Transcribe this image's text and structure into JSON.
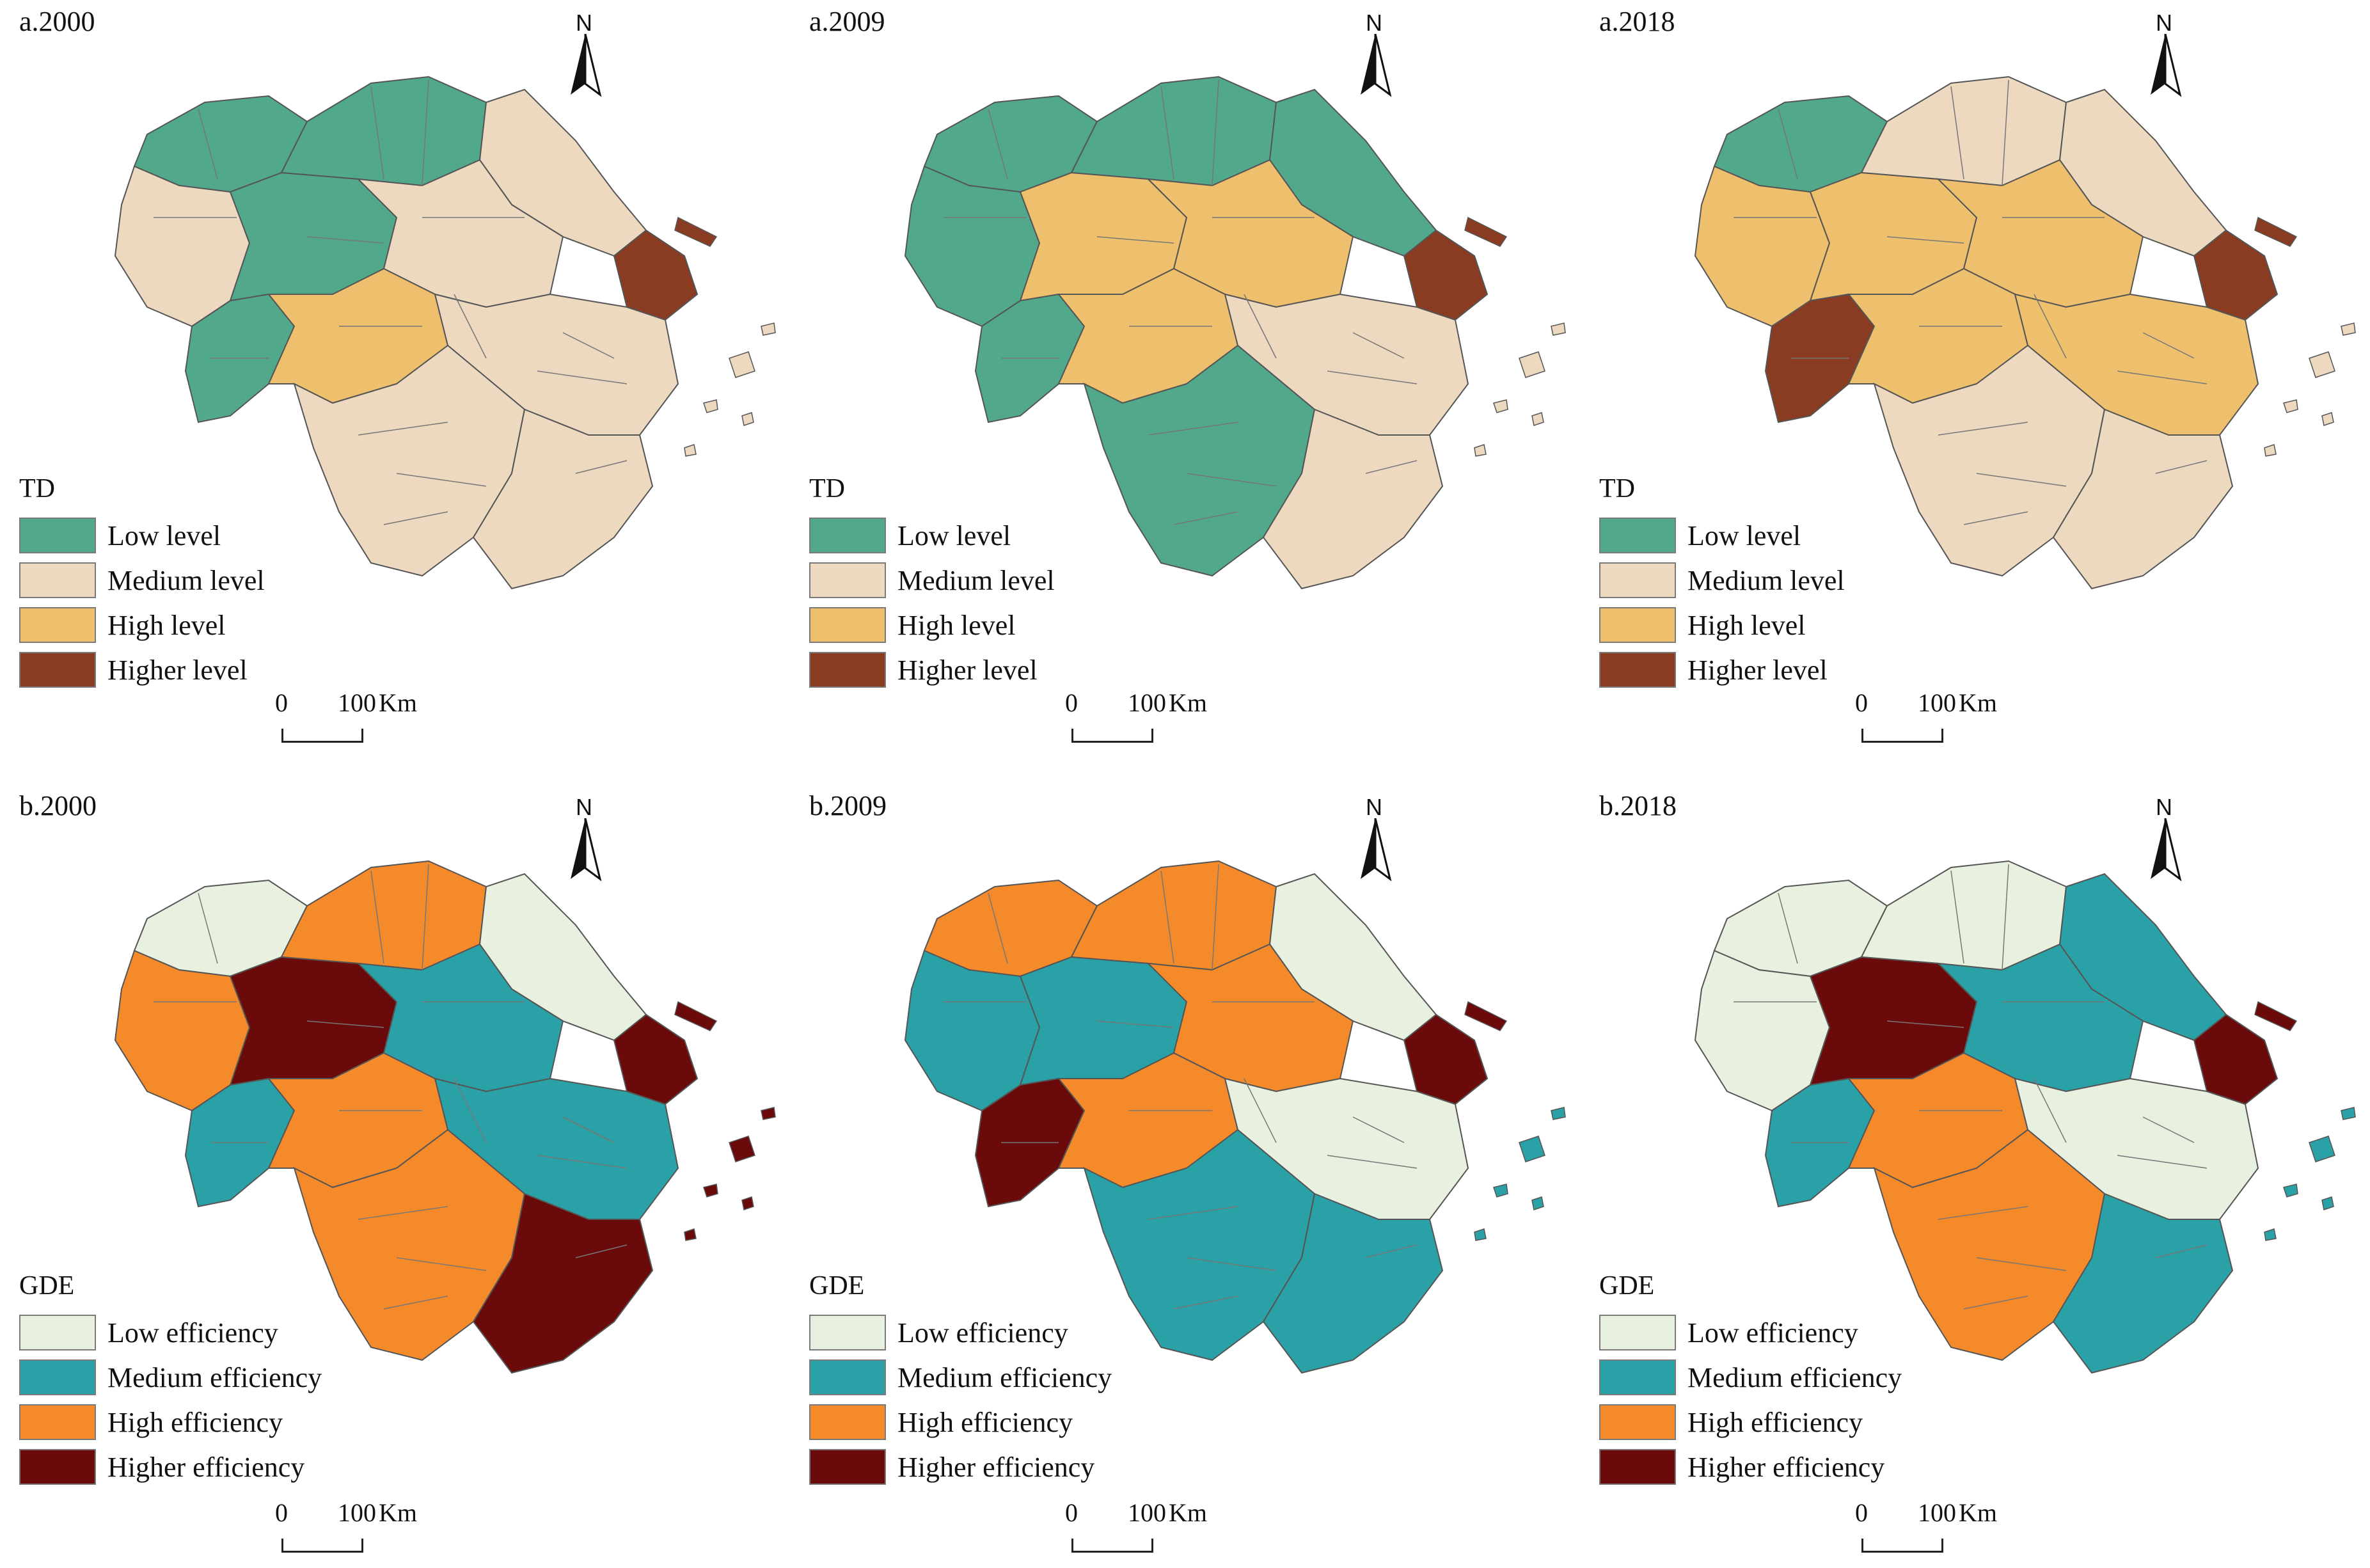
{
  "colors": {
    "td": {
      "low": "#52a88a",
      "medium": "#ecd9c0",
      "high": "#eebf6c",
      "higher": "#8a3c23"
    },
    "gde": {
      "low": "#e8f0df",
      "medium": "#2aa1a6",
      "high": "#f58a2b",
      "higher": "#6a0a0a"
    }
  },
  "panels": [
    {
      "title": "a.2000",
      "legend_title": "TD",
      "type": "td",
      "legend": [
        {
          "label": "Low level",
          "key": "low"
        },
        {
          "label": "Medium level",
          "key": "medium"
        },
        {
          "label": "High level",
          "key": "high"
        },
        {
          "label": "Higher level",
          "key": "higher"
        }
      ],
      "regions": {
        "nw": "low",
        "nc": "low",
        "ne": "medium",
        "w": "medium",
        "c": "low",
        "ce": "medium",
        "sh": "higher",
        "sw": "low",
        "sc": "high",
        "se": "medium",
        "s": "medium",
        "s2": "medium"
      }
    },
    {
      "title": "a.2009",
      "legend_title": "TD",
      "type": "td",
      "legend": [
        {
          "label": "Low level",
          "key": "low"
        },
        {
          "label": "Medium level",
          "key": "medium"
        },
        {
          "label": "High level",
          "key": "high"
        },
        {
          "label": "Higher level",
          "key": "higher"
        }
      ],
      "regions": {
        "nw": "low",
        "nc": "low",
        "ne": "low",
        "w": "low",
        "c": "high",
        "ce": "high",
        "sh": "higher",
        "sw": "low",
        "sc": "high",
        "se": "medium",
        "s": "low",
        "s2": "medium"
      }
    },
    {
      "title": "a.2018",
      "legend_title": "TD",
      "type": "td",
      "legend": [
        {
          "label": "Low level",
          "key": "low"
        },
        {
          "label": "Medium level",
          "key": "medium"
        },
        {
          "label": "High level",
          "key": "high"
        },
        {
          "label": "Higher level",
          "key": "higher"
        }
      ],
      "regions": {
        "nw": "low",
        "nc": "medium",
        "ne": "medium",
        "w": "high",
        "c": "high",
        "ce": "high",
        "sh": "higher",
        "sw": "higher",
        "sc": "high",
        "se": "high",
        "s": "medium",
        "s2": "medium"
      }
    },
    {
      "title": "b.2000",
      "legend_title": "GDE",
      "type": "gde",
      "legend": [
        {
          "label": "Low efficiency",
          "key": "low"
        },
        {
          "label": "Medium efficiency",
          "key": "medium"
        },
        {
          "label": "High efficiency",
          "key": "high"
        },
        {
          "label": "Higher efficiency",
          "key": "higher"
        }
      ],
      "regions": {
        "nw": "low",
        "nc": "high",
        "ne": "low",
        "w": "high",
        "c": "higher",
        "ce": "medium",
        "sh": "higher",
        "sw": "medium",
        "sc": "high",
        "se": "medium",
        "s": "high",
        "s2": "higher"
      }
    },
    {
      "title": "b.2009",
      "legend_title": "GDE",
      "type": "gde",
      "legend": [
        {
          "label": "Low efficiency",
          "key": "low"
        },
        {
          "label": "Medium efficiency",
          "key": "medium"
        },
        {
          "label": "High efficiency",
          "key": "high"
        },
        {
          "label": "Higher efficiency",
          "key": "higher"
        }
      ],
      "regions": {
        "nw": "high",
        "nc": "high",
        "ne": "low",
        "w": "medium",
        "c": "medium",
        "ce": "high",
        "sh": "higher",
        "sw": "higher",
        "sc": "high",
        "se": "low",
        "s": "medium",
        "s2": "medium"
      }
    },
    {
      "title": "b.2018",
      "legend_title": "GDE",
      "type": "gde",
      "legend": [
        {
          "label": "Low efficiency",
          "key": "low"
        },
        {
          "label": "Medium efficiency",
          "key": "medium"
        },
        {
          "label": "High efficiency",
          "key": "high"
        },
        {
          "label": "Higher efficiency",
          "key": "higher"
        }
      ],
      "regions": {
        "nw": "low",
        "nc": "low",
        "ne": "medium",
        "w": "low",
        "c": "higher",
        "ce": "medium",
        "sh": "higher",
        "sw": "medium",
        "sc": "high",
        "se": "low",
        "s": "high",
        "s2": "medium"
      }
    }
  ],
  "scale_bar": {
    "zero": "0",
    "distance": "100",
    "unit": "Km"
  },
  "north_label": "N"
}
